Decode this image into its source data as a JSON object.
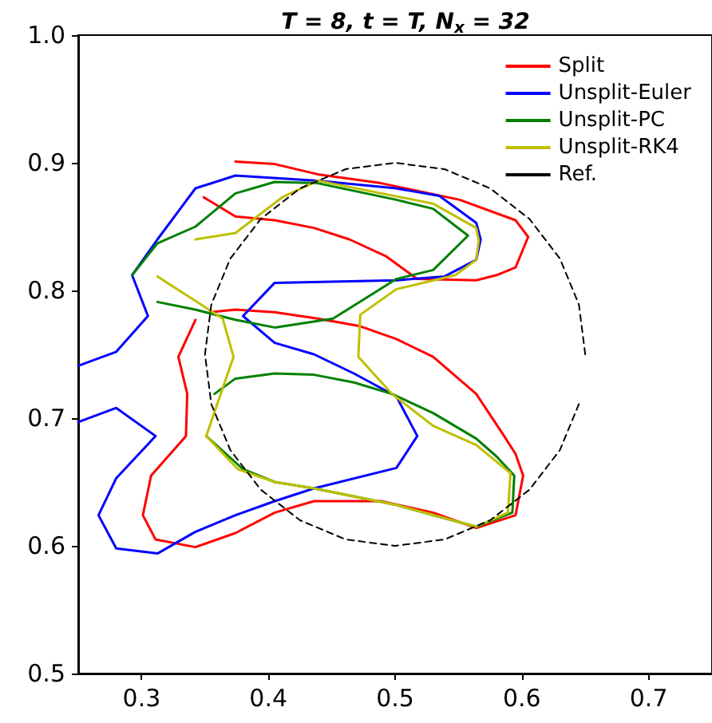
{
  "chart_data": {
    "type": "line",
    "title": "T = 8, t = T, N$_{x}$ = 32",
    "xlim": [
      0.25,
      0.75
    ],
    "xticks": [
      0.3,
      0.4,
      0.5,
      0.6,
      0.7
    ],
    "ylim": [
      0.5,
      1.0
    ],
    "yticks": [
      {
        "value": 0.5,
        "label": "0.5"
      },
      {
        "value": 0.6,
        "label": "0.6"
      },
      {
        "value": 0.7,
        "label": "0.7"
      },
      {
        "value": 0.8,
        "label": "0.8"
      },
      {
        "value": 0.9,
        "label": "0.9"
      },
      {
        "value": 1.0,
        "label": "1.0"
      }
    ],
    "grid": false,
    "legend": "top right",
    "marker": "none",
    "series": [
      {
        "name": "Split",
        "color": "#ff0000",
        "line_style": "solid",
        "x": [
          0.374,
          0.405,
          0.439,
          0.489,
          0.551,
          0.595,
          0.605,
          0.595,
          0.58,
          0.564,
          0.5175,
          0.4925,
          0.464,
          0.436,
          0.405,
          0.374,
          0.349,
          null,
          0.3425,
          0.329,
          0.336,
          0.335,
          0.3075,
          0.301,
          0.311,
          0.3425,
          0.374,
          0.405,
          0.436,
          0.489,
          0.53,
          0.564,
          0.595,
          0.601,
          0.595,
          0.586,
          0.564,
          0.53,
          0.501,
          0.4725,
          0.439,
          0.405,
          0.374,
          0.354
        ],
        "values": [
          0.901,
          0.899,
          0.891,
          0.884,
          0.871,
          0.855,
          0.842,
          0.818,
          0.812,
          0.808,
          0.809,
          0.827,
          0.84,
          0.849,
          0.855,
          0.858,
          0.873,
          null,
          0.777,
          0.748,
          0.719,
          0.686,
          0.655,
          0.624,
          0.605,
          0.599,
          0.61,
          0.626,
          0.635,
          0.635,
          0.626,
          0.614,
          0.624,
          0.655,
          0.672,
          0.686,
          0.719,
          0.748,
          0.762,
          0.772,
          0.778,
          0.783,
          0.785,
          0.783
        ]
      },
      {
        "name": "Unsplit-Euler",
        "color": "#0000ff",
        "line_style": "solid",
        "x": [
          0.25,
          0.28,
          0.311,
          0.28,
          0.266,
          0.28,
          0.3125,
          0.3425,
          0.374,
          0.405,
          0.436,
          0.501,
          0.5175,
          0.501,
          0.4675,
          0.436,
          0.405,
          0.38,
          0.405,
          0.501,
          0.539,
          0.564,
          0.5675,
          0.564,
          0.535,
          0.501,
          0.439,
          0.374,
          0.3425,
          0.3125,
          0.2925,
          0.305,
          0.28,
          0.25
        ],
        "values": [
          0.697,
          0.708,
          0.686,
          0.653,
          0.624,
          0.598,
          0.594,
          0.611,
          0.624,
          0.635,
          0.645,
          0.661,
          0.686,
          0.717,
          0.735,
          0.75,
          0.759,
          0.78,
          0.806,
          0.808,
          0.811,
          0.824,
          0.84,
          0.853,
          0.874,
          0.88,
          0.886,
          0.89,
          0.88,
          0.84,
          0.812,
          0.78,
          0.752,
          0.741
        ]
      },
      {
        "name": "Unsplit-PC",
        "color": "#008000",
        "line_style": "solid",
        "x": [
          0.2925,
          0.3125,
          0.3425,
          0.374,
          0.405,
          0.439,
          0.501,
          0.53,
          0.5575,
          0.53,
          0.501,
          0.48,
          0.451,
          0.405,
          0.374,
          0.3425,
          0.3125,
          null,
          0.3575,
          0.374,
          0.405,
          0.436,
          0.4675,
          0.4975,
          0.53,
          0.564,
          0.58,
          0.594,
          0.5925,
          0.564,
          0.53,
          0.501,
          0.436,
          0.405,
          0.38,
          0.351
        ],
        "values": [
          0.812,
          0.837,
          0.85,
          0.876,
          0.885,
          0.884,
          0.871,
          0.864,
          0.843,
          0.816,
          0.809,
          0.796,
          0.778,
          0.771,
          0.777,
          0.785,
          0.791,
          null,
          0.719,
          0.731,
          0.735,
          0.734,
          0.728,
          0.719,
          0.704,
          0.684,
          0.67,
          0.655,
          0.626,
          0.615,
          0.624,
          0.632,
          0.645,
          0.65,
          0.66,
          0.686
        ]
      },
      {
        "name": "Unsplit-RK4",
        "color": "#bfbf00",
        "line_style": "solid",
        "x": [
          0.3125,
          0.364,
          0.3725,
          0.351,
          0.376,
          0.405,
          0.436,
          0.501,
          0.564,
          0.589,
          0.591,
          0.564,
          0.53,
          0.4975,
          0.471,
          0.4725,
          0.501,
          0.5475,
          0.564,
          0.566,
          0.564,
          0.53,
          0.439,
          0.411,
          0.374,
          0.3425
        ],
        "values": [
          0.811,
          0.778,
          0.748,
          0.686,
          0.66,
          0.65,
          0.645,
          0.632,
          0.615,
          0.626,
          0.657,
          0.679,
          0.694,
          0.719,
          0.748,
          0.781,
          0.801,
          0.812,
          0.824,
          0.839,
          0.849,
          0.868,
          0.886,
          0.873,
          0.845,
          0.84
        ]
      },
      {
        "name": "Ref.",
        "color": "#000000",
        "line_style": "dashed",
        "x": [
          0.65,
          0.645,
          0.63,
          0.606,
          0.575,
          0.539,
          0.5,
          0.461,
          0.425,
          0.394,
          0.37,
          0.355,
          0.35,
          0.355,
          0.37,
          0.394,
          0.425,
          0.461,
          0.5,
          0.539,
          0.575,
          0.606,
          0.63,
          0.645
        ],
        "values": [
          0.75,
          0.789,
          0.825,
          0.856,
          0.88,
          0.895,
          0.9,
          0.895,
          0.88,
          0.856,
          0.825,
          0.789,
          0.75,
          0.711,
          0.675,
          0.644,
          0.62,
          0.605,
          0.6,
          0.605,
          0.62,
          0.644,
          0.675,
          0.711
        ]
      }
    ]
  }
}
